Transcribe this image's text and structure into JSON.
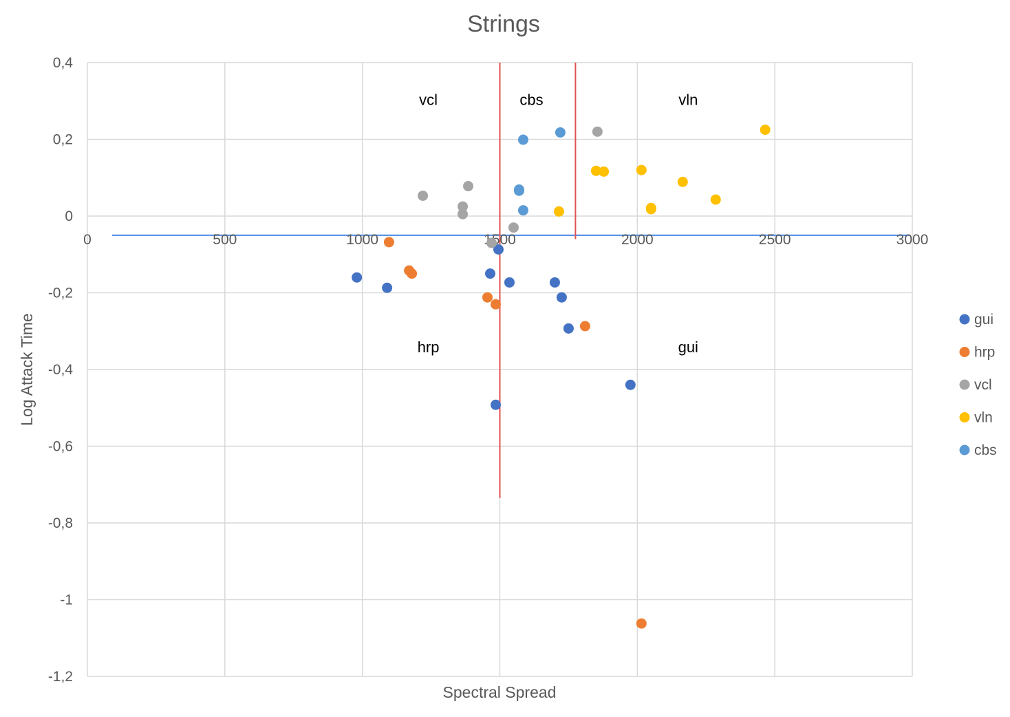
{
  "chart_data": {
    "type": "scatter",
    "title": "Strings",
    "xlabel": "Spectral Spread",
    "ylabel": "Log Attack Time",
    "xlim": [
      0,
      3000
    ],
    "ylim": [
      -1.2,
      0.4
    ],
    "x_ticks": [
      {
        "value": 0,
        "label": "0"
      },
      {
        "value": 500,
        "label": "500"
      },
      {
        "value": 1000,
        "label": "1000"
      },
      {
        "value": 1500,
        "label": "1500"
      },
      {
        "value": 2000,
        "label": "2000"
      },
      {
        "value": 2500,
        "label": "2500"
      },
      {
        "value": 3000,
        "label": "3000"
      }
    ],
    "y_ticks": [
      {
        "value": 0.4,
        "label": "0,4"
      },
      {
        "value": 0.2,
        "label": "0,2"
      },
      {
        "value": 0,
        "label": "0"
      },
      {
        "value": -0.2,
        "label": "-0,2"
      },
      {
        "value": -0.4,
        "label": "-0,4"
      },
      {
        "value": -0.6,
        "label": "-0,6"
      },
      {
        "value": -0.8,
        "label": "-0,8"
      },
      {
        "value": -1,
        "label": "-1"
      },
      {
        "value": -1.2,
        "label": "-1,2"
      }
    ],
    "grid": true,
    "legend_position": "right",
    "series": [
      {
        "name": "gui",
        "color": "#4472c4",
        "points": [
          [
            980,
            -0.16
          ],
          [
            1090,
            -0.187
          ],
          [
            1495,
            -0.087
          ],
          [
            1465,
            -0.15
          ],
          [
            1535,
            -0.173
          ],
          [
            1700,
            -0.173
          ],
          [
            1725,
            -0.212
          ],
          [
            1750,
            -0.293
          ],
          [
            1975,
            -0.44
          ],
          [
            1485,
            -0.492
          ]
        ]
      },
      {
        "name": "hrp",
        "color": "#ed7d31",
        "points": [
          [
            1097,
            -0.068
          ],
          [
            1170,
            -0.142
          ],
          [
            1180,
            -0.15
          ],
          [
            1455,
            -0.212
          ],
          [
            1485,
            -0.23
          ],
          [
            1810,
            -0.287
          ],
          [
            2015,
            -1.062
          ]
        ]
      },
      {
        "name": "vcl",
        "color": "#a5a5a5",
        "points": [
          [
            1220,
            0.053
          ],
          [
            1385,
            0.078
          ],
          [
            1365,
            0.025
          ],
          [
            1365,
            0.005
          ],
          [
            1550,
            -0.03
          ],
          [
            1470,
            -0.07
          ],
          [
            1855,
            0.22
          ]
        ]
      },
      {
        "name": "vln",
        "color": "#ffc000",
        "points": [
          [
            2465,
            0.225
          ],
          [
            1850,
            0.118
          ],
          [
            1878,
            0.116
          ],
          [
            2015,
            0.12
          ],
          [
            2165,
            0.089
          ],
          [
            2285,
            0.043
          ],
          [
            2050,
            0.021
          ],
          [
            2050,
            0.018
          ],
          [
            1715,
            0.012
          ]
        ]
      },
      {
        "name": "cbs",
        "color": "#5b9bd5",
        "points": [
          [
            1720,
            0.218
          ],
          [
            1585,
            0.199
          ],
          [
            1570,
            0.069
          ],
          [
            1570,
            0.066
          ],
          [
            1585,
            0.015
          ]
        ]
      }
    ],
    "reference_lines": [
      {
        "kind": "horizontal",
        "color": "#4a8ae6",
        "from": [
          90,
          -0.05
        ],
        "to": [
          2990,
          -0.05
        ]
      },
      {
        "kind": "vertical",
        "color": "#e05252",
        "from": [
          1500,
          0.4
        ],
        "to": [
          1500,
          -0.735
        ]
      },
      {
        "kind": "vertical",
        "color": "#e05252",
        "from": [
          1775,
          0.4
        ],
        "to": [
          1775,
          -0.06
        ]
      }
    ],
    "annotations": [
      {
        "text": "vcl",
        "x": 1240,
        "y": 0.29
      },
      {
        "text": "cbs",
        "x": 1615,
        "y": 0.29
      },
      {
        "text": "vln",
        "x": 2185,
        "y": 0.29
      },
      {
        "text": "hrp",
        "x": 1240,
        "y": -0.355
      },
      {
        "text": "gui",
        "x": 2185,
        "y": -0.355
      }
    ]
  }
}
